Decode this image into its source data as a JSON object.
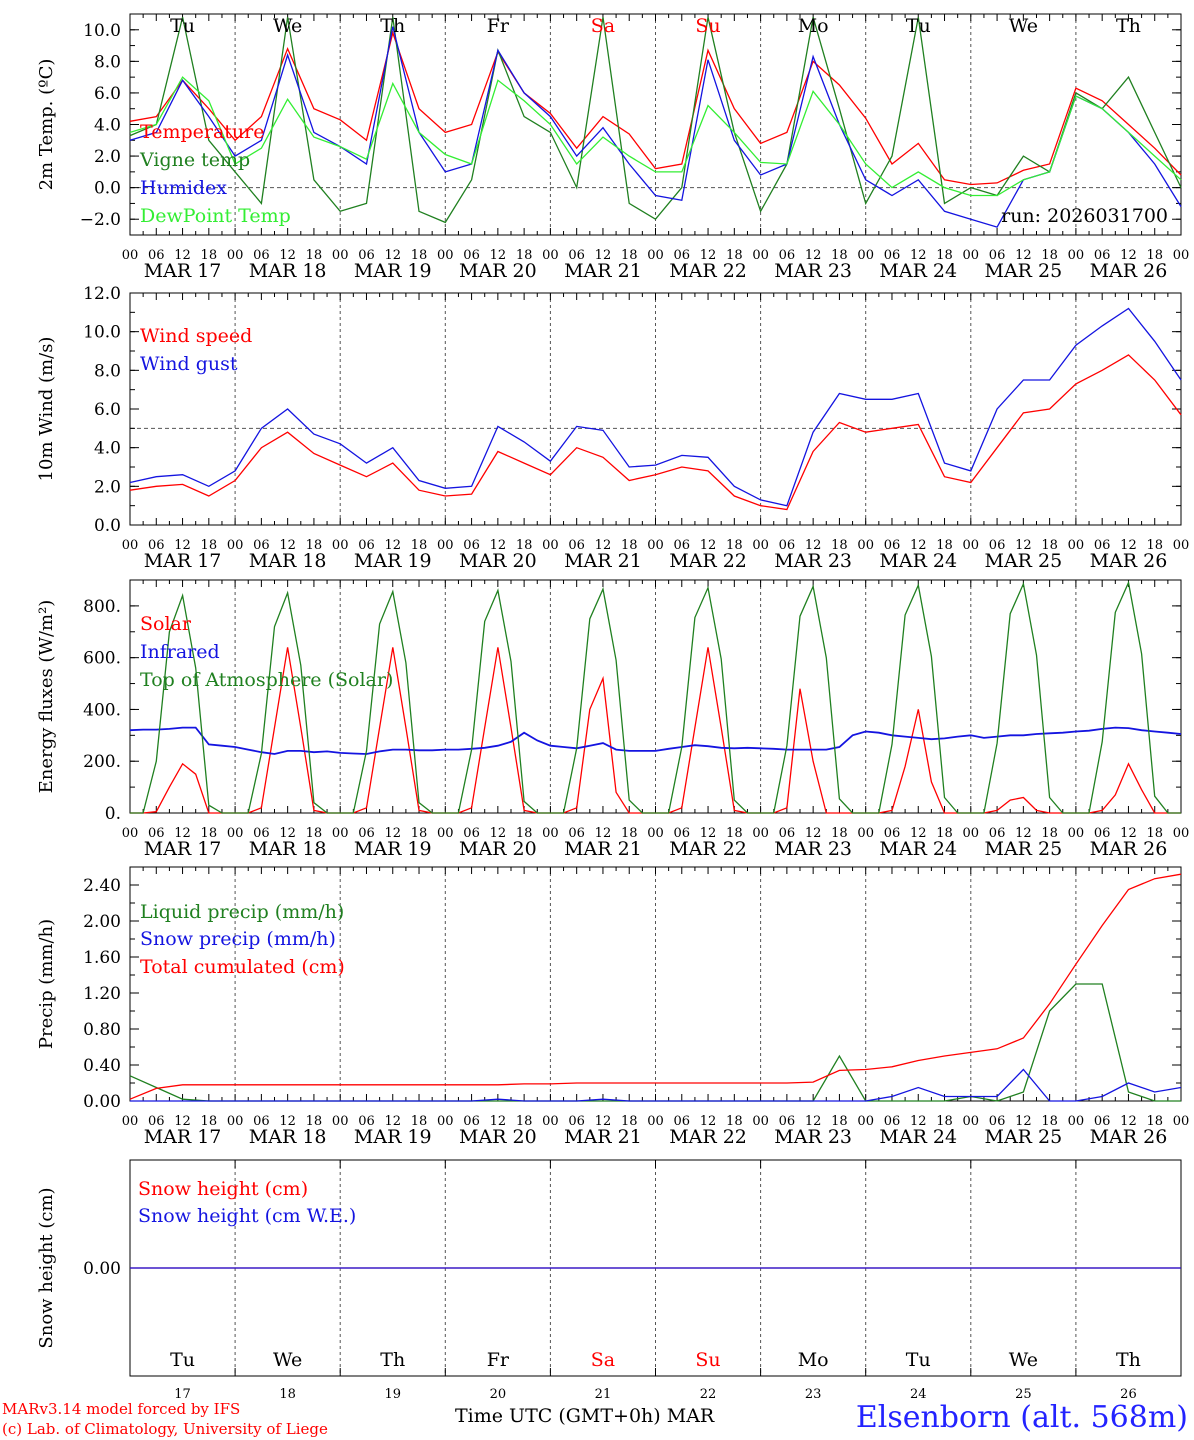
{
  "colors": {
    "red": "#ff0000",
    "green": "#208020",
    "blue": "#1414e0",
    "lightgreen": "#33ee33",
    "weekend": "#ff0000"
  },
  "days": {
    "weekday_labels": [
      "Tu",
      "We",
      "Th",
      "Fr",
      "Sa",
      "Su",
      "Mo",
      "Tu",
      "We",
      "Th"
    ],
    "weekend_flags": [
      false,
      false,
      false,
      false,
      true,
      true,
      false,
      false,
      false,
      false
    ],
    "date_labels": [
      "MAR 17",
      "MAR 18",
      "MAR 19",
      "MAR 20",
      "MAR 21",
      "MAR 22",
      "MAR 23",
      "MAR 24",
      "MAR 25",
      "MAR 26"
    ],
    "day_numbers": [
      "17",
      "18",
      "19",
      "20",
      "21",
      "22",
      "23",
      "24",
      "25",
      "26"
    ],
    "hour_ticks": [
      "00",
      "06",
      "12",
      "18"
    ],
    "final_tick": "00"
  },
  "footer": {
    "model": "MARv3.14 model forced by IFS",
    "lab": "(c) Lab. of Climatology, University of Liege",
    "axis_title": "Time UTC (GMT+0h)",
    "month": "MAR",
    "station": "Elsenborn (alt. 568m)"
  },
  "chart_data": [
    {
      "type": "line",
      "ylabel": "2m Temp. (ºC)",
      "ylim": [
        -3,
        11
      ],
      "yticks": [
        -2,
        0,
        2,
        4,
        6,
        8,
        10
      ],
      "ytick_labels": [
        "−2.0",
        "0.0",
        "2.0",
        "4.0",
        "6.0",
        "8.0",
        "10.0"
      ],
      "ref_line": 0,
      "annotation": "run: 2026031700",
      "x_hours": [
        0,
        6,
        12,
        18,
        24,
        30,
        36,
        42,
        48,
        54,
        60,
        66,
        72,
        78,
        84,
        90,
        96,
        102,
        108,
        114,
        120,
        126,
        132,
        138,
        144,
        150,
        156,
        162,
        168,
        174,
        180,
        186,
        192,
        198,
        204,
        210,
        216,
        222,
        228,
        234,
        240
      ],
      "series": [
        {
          "name": "Temperature",
          "color": "red",
          "values": [
            4.2,
            4.5,
            6.8,
            5.0,
            3.0,
            4.5,
            8.8,
            5.0,
            4.3,
            3.0,
            9.8,
            5.0,
            3.5,
            4.0,
            8.6,
            6.0,
            4.7,
            2.5,
            4.5,
            3.4,
            1.2,
            1.5,
            8.7,
            5.0,
            2.8,
            3.5,
            8.0,
            6.5,
            4.4,
            1.5,
            2.8,
            0.5,
            0.2,
            0.3,
            1.1,
            1.5,
            6.3,
            5.5,
            4.0,
            2.5,
            0.8
          ]
        },
        {
          "name": "Vigne temp",
          "color": "green",
          "values": [
            3.3,
            4.0,
            10.8,
            3.0,
            1.0,
            -1.0,
            10.8,
            0.5,
            -1.5,
            -1.0,
            10.8,
            -1.5,
            -2.2,
            0.5,
            8.7,
            4.5,
            3.5,
            0.0,
            10.8,
            -1.0,
            -2.0,
            0.0,
            10.8,
            3.5,
            -1.5,
            1.5,
            10.8,
            5.0,
            -1.0,
            2.0,
            10.8,
            -1.0,
            0.0,
            -0.5,
            2.0,
            1.0,
            6.0,
            5.0,
            7.0,
            3.5,
            0.0
          ]
        },
        {
          "name": "Humidex",
          "color": "blue",
          "values": [
            3.0,
            3.5,
            6.8,
            4.5,
            2.0,
            3.0,
            8.4,
            3.5,
            2.6,
            1.5,
            10.2,
            3.5,
            1.0,
            1.5,
            8.7,
            6.0,
            4.5,
            2.0,
            3.8,
            1.5,
            -0.5,
            -0.8,
            8.1,
            3.0,
            0.8,
            1.5,
            8.3,
            4.0,
            0.5,
            -0.5,
            0.5,
            -1.5,
            -2.0,
            -2.5,
            0.5,
            1.0,
            5.8,
            5.0,
            3.5,
            1.5,
            -1.2
          ]
        },
        {
          "name": "DewPoint Temp",
          "color": "lightgreen",
          "values": [
            3.5,
            4.0,
            7.0,
            5.5,
            1.5,
            2.5,
            5.6,
            3.2,
            2.6,
            1.8,
            6.6,
            3.5,
            2.1,
            1.5,
            6.8,
            5.5,
            4.0,
            1.5,
            3.2,
            2.0,
            1.0,
            1.0,
            5.2,
            3.5,
            1.6,
            1.5,
            6.1,
            4.0,
            1.5,
            0.0,
            1.0,
            0.0,
            -0.5,
            -0.5,
            0.5,
            1.0,
            5.8,
            5.0,
            3.5,
            2.0,
            0.5
          ]
        }
      ]
    },
    {
      "type": "line",
      "ylabel": "10m Wind (m/s)",
      "ylim": [
        0,
        12
      ],
      "yticks": [
        0,
        2,
        4,
        6,
        8,
        10,
        12
      ],
      "ytick_labels": [
        "0.0",
        "2.0",
        "4.0",
        "6.0",
        "8.0",
        "10.0",
        "12.0"
      ],
      "ref_line": 5,
      "x_hours": [
        0,
        6,
        12,
        18,
        24,
        30,
        36,
        42,
        48,
        54,
        60,
        66,
        72,
        78,
        84,
        90,
        96,
        102,
        108,
        114,
        120,
        126,
        132,
        138,
        144,
        150,
        156,
        162,
        168,
        174,
        180,
        186,
        192,
        198,
        204,
        210,
        216,
        222,
        228,
        234,
        240
      ],
      "series": [
        {
          "name": "Wind speed",
          "color": "red",
          "values": [
            1.8,
            2.0,
            2.1,
            1.5,
            2.3,
            4.0,
            4.8,
            3.7,
            3.1,
            2.5,
            3.2,
            1.8,
            1.5,
            1.6,
            3.8,
            3.2,
            2.6,
            4.0,
            3.5,
            2.3,
            2.6,
            3.0,
            2.8,
            1.5,
            1.0,
            0.8,
            3.8,
            5.3,
            4.8,
            5.0,
            5.2,
            2.5,
            2.2,
            4.0,
            5.8,
            6.0,
            7.3,
            8.0,
            8.8,
            7.5,
            5.7
          ]
        },
        {
          "name": "Wind gust",
          "color": "blue",
          "values": [
            2.2,
            2.5,
            2.6,
            2.0,
            2.8,
            5.0,
            6.0,
            4.7,
            4.2,
            3.2,
            4.0,
            2.3,
            1.9,
            2.0,
            5.1,
            4.3,
            3.3,
            5.1,
            4.9,
            3.0,
            3.1,
            3.6,
            3.5,
            2.0,
            1.3,
            1.0,
            4.8,
            6.8,
            6.5,
            6.5,
            6.8,
            3.2,
            2.8,
            6.0,
            7.5,
            7.5,
            9.3,
            10.3,
            11.2,
            9.5,
            7.5
          ]
        }
      ]
    },
    {
      "type": "line",
      "ylabel": "Energy fluxes (W/m²)",
      "ylim": [
        0,
        900
      ],
      "yticks": [
        0,
        200,
        400,
        600,
        800
      ],
      "ytick_labels": [
        "0.",
        "200.",
        "400.",
        "600.",
        "800."
      ],
      "x_hours": [
        0,
        3,
        6,
        9,
        12,
        15,
        18,
        21,
        24,
        27,
        30,
        33,
        36,
        39,
        42,
        45,
        48,
        51,
        54,
        57,
        60,
        63,
        66,
        69,
        72,
        75,
        78,
        81,
        84,
        87,
        90,
        93,
        96,
        99,
        102,
        105,
        108,
        111,
        114,
        117,
        120,
        123,
        126,
        129,
        132,
        135,
        138,
        141,
        144,
        147,
        150,
        153,
        156,
        159,
        162,
        165,
        168,
        171,
        174,
        177,
        180,
        183,
        186,
        189,
        192,
        195,
        198,
        201,
        204,
        207,
        210,
        213,
        216,
        219,
        222,
        225,
        228,
        231,
        234,
        237,
        240
      ],
      "series": [
        {
          "name": "Solar",
          "color": "red",
          "values": [
            0,
            0,
            5,
            100,
            190,
            150,
            0,
            0,
            0,
            0,
            20,
            330,
            640,
            330,
            10,
            0,
            0,
            0,
            20,
            330,
            640,
            330,
            10,
            0,
            0,
            0,
            20,
            330,
            640,
            330,
            10,
            0,
            0,
            0,
            20,
            400,
            520,
            80,
            0,
            0,
            0,
            0,
            20,
            330,
            640,
            330,
            10,
            0,
            0,
            0,
            20,
            480,
            200,
            0,
            0,
            0,
            0,
            0,
            10,
            180,
            400,
            120,
            0,
            0,
            0,
            0,
            10,
            50,
            60,
            10,
            0,
            0,
            0,
            0,
            10,
            70,
            190,
            90,
            0,
            0,
            0
          ]
        },
        {
          "name": "Infrared",
          "color": "blue",
          "values": [
            320,
            322,
            322,
            325,
            330,
            330,
            265,
            260,
            255,
            245,
            235,
            228,
            240,
            240,
            235,
            238,
            232,
            230,
            228,
            238,
            245,
            245,
            242,
            242,
            245,
            245,
            248,
            252,
            260,
            275,
            310,
            280,
            260,
            255,
            250,
            260,
            270,
            245,
            240,
            240,
            240,
            248,
            255,
            262,
            258,
            252,
            250,
            252,
            250,
            248,
            245,
            245,
            245,
            245,
            255,
            300,
            315,
            310,
            300,
            295,
            290,
            285,
            288,
            295,
            300,
            290,
            295,
            300,
            300,
            305,
            308,
            310,
            315,
            318,
            325,
            330,
            328,
            320,
            315,
            310,
            305
          ]
        },
        {
          "name": "Top of Atmosphere (Solar)",
          "color": "green",
          "values": [
            0,
            0,
            200,
            700,
            840,
            560,
            30,
            0,
            0,
            0,
            230,
            720,
            850,
            570,
            40,
            0,
            0,
            0,
            240,
            730,
            855,
            580,
            40,
            0,
            0,
            0,
            245,
            740,
            860,
            585,
            45,
            0,
            0,
            0,
            250,
            750,
            865,
            590,
            50,
            0,
            0,
            0,
            255,
            755,
            870,
            595,
            50,
            0,
            0,
            0,
            260,
            760,
            875,
            600,
            55,
            0,
            0,
            0,
            265,
            765,
            880,
            605,
            60,
            0,
            0,
            0,
            270,
            770,
            885,
            610,
            60,
            0,
            0,
            0,
            275,
            775,
            890,
            615,
            65,
            0,
            0
          ]
        }
      ]
    },
    {
      "type": "line",
      "ylabel": "Precip (mm/h)",
      "ylim": [
        0,
        2.6
      ],
      "yticks": [
        0,
        0.4,
        0.8,
        1.2,
        1.6,
        2.0,
        2.4
      ],
      "ytick_labels": [
        "0.00",
        "0.40",
        "0.80",
        "1.20",
        "1.60",
        "2.00",
        "2.40"
      ],
      "x_hours": [
        0,
        6,
        12,
        18,
        24,
        30,
        36,
        42,
        48,
        54,
        60,
        66,
        72,
        78,
        84,
        90,
        96,
        102,
        108,
        114,
        120,
        126,
        132,
        138,
        144,
        150,
        156,
        162,
        168,
        174,
        180,
        186,
        192,
        198,
        204,
        210,
        216,
        222,
        228,
        234,
        240
      ],
      "series": [
        {
          "name": "Liquid precip (mm/h)",
          "color": "green",
          "values": [
            0.28,
            0.15,
            0.02,
            0,
            0,
            0,
            0,
            0,
            0,
            0,
            0,
            0,
            0,
            0,
            0,
            0,
            0,
            0,
            0,
            0,
            0,
            0,
            0,
            0,
            0,
            0,
            0,
            0.5,
            0,
            0,
            0,
            0,
            0.05,
            0,
            0.1,
            1.0,
            1.3,
            1.3,
            0.1,
            0,
            0
          ]
        },
        {
          "name": "Snow precip (mm/h)",
          "color": "blue",
          "values": [
            0,
            0,
            0,
            0,
            0,
            0,
            0,
            0,
            0,
            0,
            0,
            0,
            0,
            0,
            0.02,
            0,
            0,
            0,
            0.02,
            0,
            0,
            0,
            0,
            0,
            0,
            0,
            0,
            0,
            0,
            0.05,
            0.15,
            0.05,
            0.05,
            0.05,
            0.35,
            0,
            0,
            0.05,
            0.2,
            0.1,
            0.15
          ]
        },
        {
          "name": "Total cumulated (cm)",
          "color": "red",
          "values": [
            0.02,
            0.14,
            0.18,
            0.18,
            0.18,
            0.18,
            0.18,
            0.18,
            0.18,
            0.18,
            0.18,
            0.18,
            0.18,
            0.18,
            0.18,
            0.19,
            0.19,
            0.2,
            0.2,
            0.2,
            0.2,
            0.2,
            0.2,
            0.2,
            0.2,
            0.2,
            0.21,
            0.34,
            0.35,
            0.38,
            0.45,
            0.5,
            0.54,
            0.58,
            0.7,
            1.08,
            1.52,
            1.95,
            2.35,
            2.47,
            2.52
          ]
        }
      ]
    },
    {
      "type": "line",
      "ylabel": "Snow height (cm)",
      "ylim": [
        -1,
        1
      ],
      "yticks": [
        0
      ],
      "ytick_labels": [
        "0.00"
      ],
      "x_hours": [
        0,
        240
      ],
      "series": [
        {
          "name": "Snow height (cm)",
          "color": "red",
          "values": [
            0,
            0
          ]
        },
        {
          "name": "Snow height (cm W.E.)",
          "color": "blue",
          "values": [
            0,
            0
          ]
        }
      ]
    }
  ]
}
